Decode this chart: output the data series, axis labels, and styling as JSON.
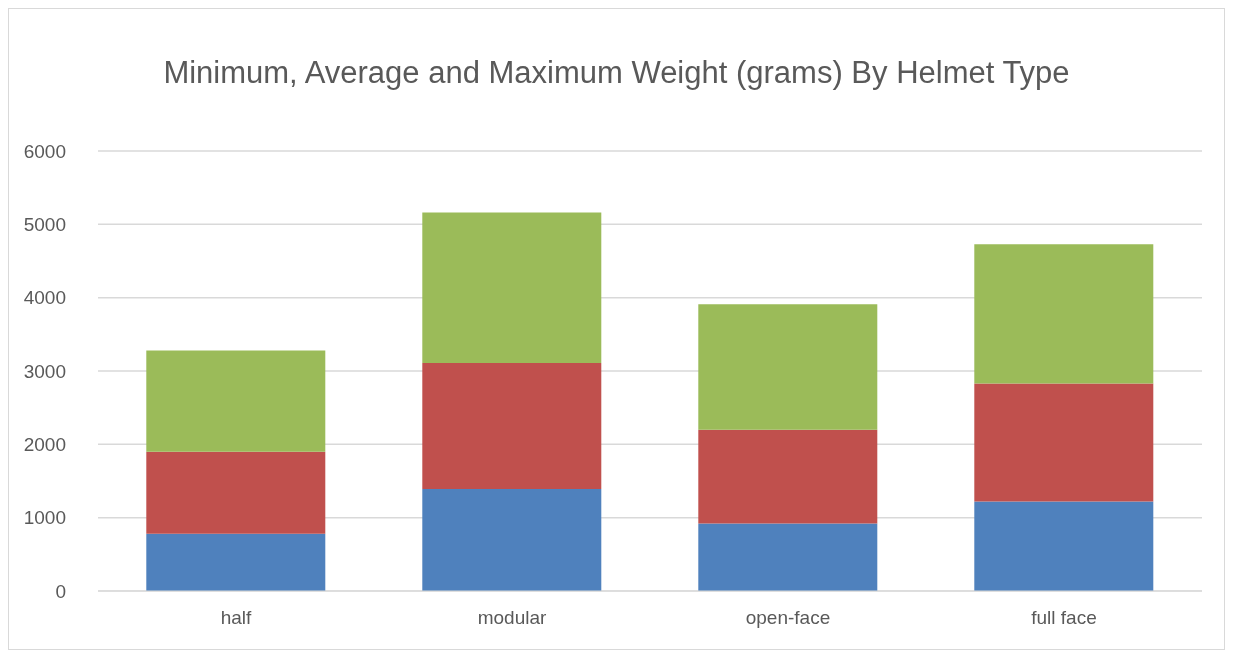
{
  "chart_data": {
    "type": "bar",
    "title": "Minimum, Average and Maximum Weight (grams) By Helmet Type",
    "categories": [
      "half",
      "modular",
      "open-face",
      "full face"
    ],
    "stacked": true,
    "series": [
      {
        "color": "#4f81bd",
        "values": [
          780,
          1390,
          920,
          1220
        ]
      },
      {
        "color": "#c0504d",
        "values": [
          1120,
          1720,
          1280,
          1610
        ]
      },
      {
        "color": "#9bbb59",
        "values": [
          1380,
          2050,
          1710,
          1900
        ]
      }
    ],
    "ylim": [
      0,
      6000
    ],
    "yticks": [
      0,
      1000,
      2000,
      3000,
      4000,
      5000,
      6000
    ],
    "grid": "y",
    "legend": false
  }
}
